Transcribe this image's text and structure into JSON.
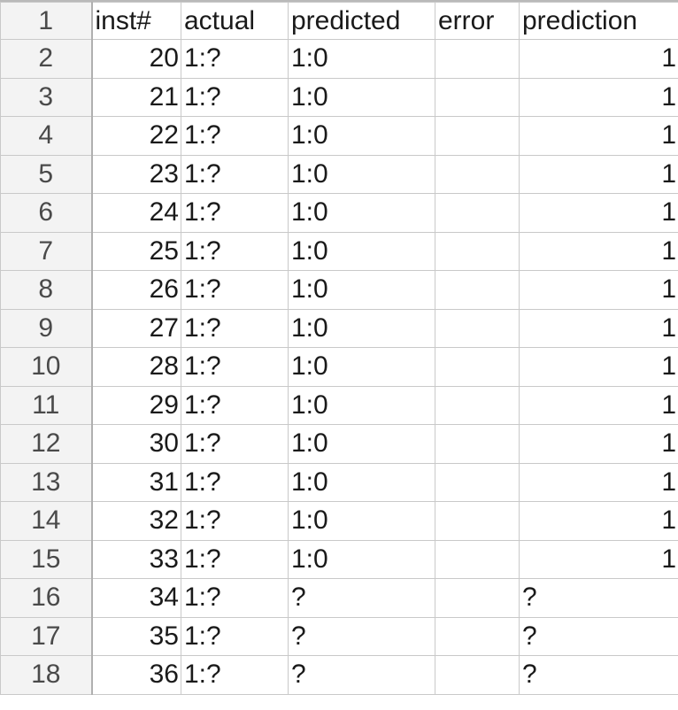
{
  "header": {
    "row_number": "1",
    "cols": [
      "inst#",
      "actual",
      "predicted",
      "error",
      "prediction"
    ]
  },
  "rows": [
    {
      "n": "2",
      "inst": "20",
      "actual": "1:?",
      "predicted": "1:0",
      "error": "",
      "prediction": "1",
      "prediction_align": "right"
    },
    {
      "n": "3",
      "inst": "21",
      "actual": "1:?",
      "predicted": "1:0",
      "error": "",
      "prediction": "1",
      "prediction_align": "right"
    },
    {
      "n": "4",
      "inst": "22",
      "actual": "1:?",
      "predicted": "1:0",
      "error": "",
      "prediction": "1",
      "prediction_align": "right"
    },
    {
      "n": "5",
      "inst": "23",
      "actual": "1:?",
      "predicted": "1:0",
      "error": "",
      "prediction": "1",
      "prediction_align": "right"
    },
    {
      "n": "6",
      "inst": "24",
      "actual": "1:?",
      "predicted": "1:0",
      "error": "",
      "prediction": "1",
      "prediction_align": "right"
    },
    {
      "n": "7",
      "inst": "25",
      "actual": "1:?",
      "predicted": "1:0",
      "error": "",
      "prediction": "1",
      "prediction_align": "right"
    },
    {
      "n": "8",
      "inst": "26",
      "actual": "1:?",
      "predicted": "1:0",
      "error": "",
      "prediction": "1",
      "prediction_align": "right"
    },
    {
      "n": "9",
      "inst": "27",
      "actual": "1:?",
      "predicted": "1:0",
      "error": "",
      "prediction": "1",
      "prediction_align": "right"
    },
    {
      "n": "10",
      "inst": "28",
      "actual": "1:?",
      "predicted": "1:0",
      "error": "",
      "prediction": "1",
      "prediction_align": "right"
    },
    {
      "n": "11",
      "inst": "29",
      "actual": "1:?",
      "predicted": "1:0",
      "error": "",
      "prediction": "1",
      "prediction_align": "right"
    },
    {
      "n": "12",
      "inst": "30",
      "actual": "1:?",
      "predicted": "1:0",
      "error": "",
      "prediction": "1",
      "prediction_align": "right"
    },
    {
      "n": "13",
      "inst": "31",
      "actual": "1:?",
      "predicted": "1:0",
      "error": "",
      "prediction": "1",
      "prediction_align": "right"
    },
    {
      "n": "14",
      "inst": "32",
      "actual": "1:?",
      "predicted": "1:0",
      "error": "",
      "prediction": "1",
      "prediction_align": "right"
    },
    {
      "n": "15",
      "inst": "33",
      "actual": "1:?",
      "predicted": "1:0",
      "error": "",
      "prediction": "1",
      "prediction_align": "right"
    },
    {
      "n": "16",
      "inst": "34",
      "actual": "1:?",
      "predicted": "?",
      "error": "",
      "prediction": "?",
      "prediction_align": "left"
    },
    {
      "n": "17",
      "inst": "35",
      "actual": "1:?",
      "predicted": "?",
      "error": "",
      "prediction": "?",
      "prediction_align": "left"
    },
    {
      "n": "18",
      "inst": "36",
      "actual": "1:?",
      "predicted": "?",
      "error": "",
      "prediction": "?",
      "prediction_align": "left"
    }
  ],
  "colors": {
    "row_header_bg": "#f3f3f3",
    "grid_line": "#c9c9c9",
    "text": "#1a1a1a"
  }
}
